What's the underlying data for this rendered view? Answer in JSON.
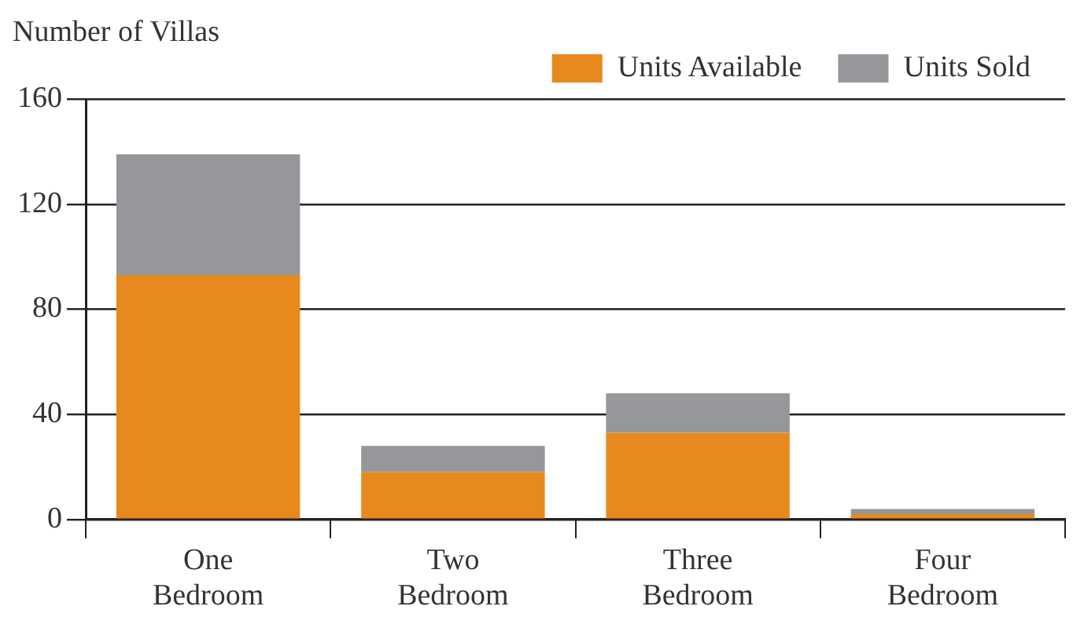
{
  "chart_data": {
    "type": "bar",
    "ylabel": "Number of Villas",
    "categories": [
      "One Bedroom",
      "Two Bedroom",
      "Three Bedroom",
      "Four Bedroom"
    ],
    "series": [
      {
        "name": "Units Available",
        "color": "#e8891e",
        "values": [
          93,
          18,
          33,
          2
        ]
      },
      {
        "name": "Units Sold",
        "color": "#96979a",
        "values": [
          46,
          10,
          15,
          2
        ]
      }
    ],
    "stacked": true,
    "ylim": [
      0,
      160
    ],
    "yticks": [
      0,
      40,
      80,
      120,
      160
    ],
    "grid": "y",
    "legend": "top right"
  }
}
